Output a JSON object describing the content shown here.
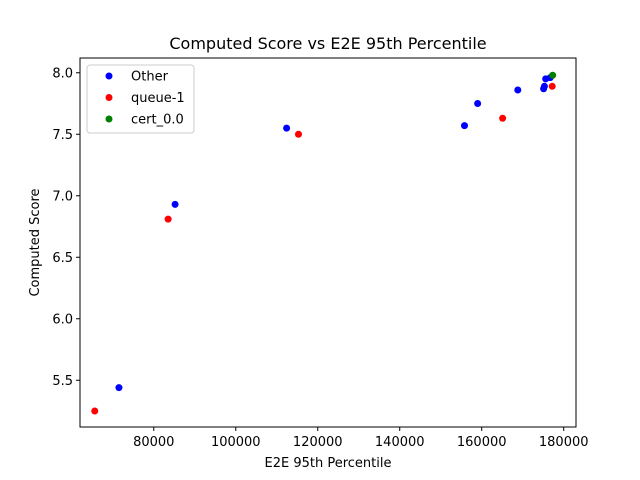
{
  "chart_data": {
    "type": "scatter",
    "title": "Computed Score vs E2E 95th Percentile",
    "xlabel": "E2E 95th Percentile",
    "ylabel": "Computed Score",
    "xlim": [
      62000,
      183000
    ],
    "ylim": [
      5.12,
      8.12
    ],
    "xticks": [
      80000,
      100000,
      120000,
      140000,
      160000,
      180000
    ],
    "xtick_labels": [
      "80000",
      "100000",
      "120000",
      "140000",
      "160000",
      "180000"
    ],
    "yticks": [
      5.5,
      6.0,
      6.5,
      7.0,
      7.5,
      8.0
    ],
    "ytick_labels": [
      "5.5",
      "6.0",
      "6.5",
      "7.0",
      "7.5",
      "8.0"
    ],
    "grid": false,
    "legend_position": "top-left",
    "series": [
      {
        "name": "Other",
        "color": "#0000ff",
        "points": [
          {
            "x": 71500,
            "y": 5.44
          },
          {
            "x": 85200,
            "y": 6.93
          },
          {
            "x": 112400,
            "y": 7.55
          },
          {
            "x": 155800,
            "y": 7.57
          },
          {
            "x": 159000,
            "y": 7.75
          },
          {
            "x": 168800,
            "y": 7.86
          },
          {
            "x": 175100,
            "y": 7.87
          },
          {
            "x": 175300,
            "y": 7.89
          },
          {
            "x": 175600,
            "y": 7.95
          },
          {
            "x": 176700,
            "y": 7.96
          }
        ]
      },
      {
        "name": "queue-1",
        "color": "#ff0000",
        "points": [
          {
            "x": 65600,
            "y": 5.25
          },
          {
            "x": 83500,
            "y": 6.81
          },
          {
            "x": 115300,
            "y": 7.5
          },
          {
            "x": 165100,
            "y": 7.63
          },
          {
            "x": 177200,
            "y": 7.89
          }
        ]
      },
      {
        "name": "cert_0.0",
        "color": "#008000",
        "points": [
          {
            "x": 177300,
            "y": 7.98
          }
        ]
      }
    ]
  }
}
